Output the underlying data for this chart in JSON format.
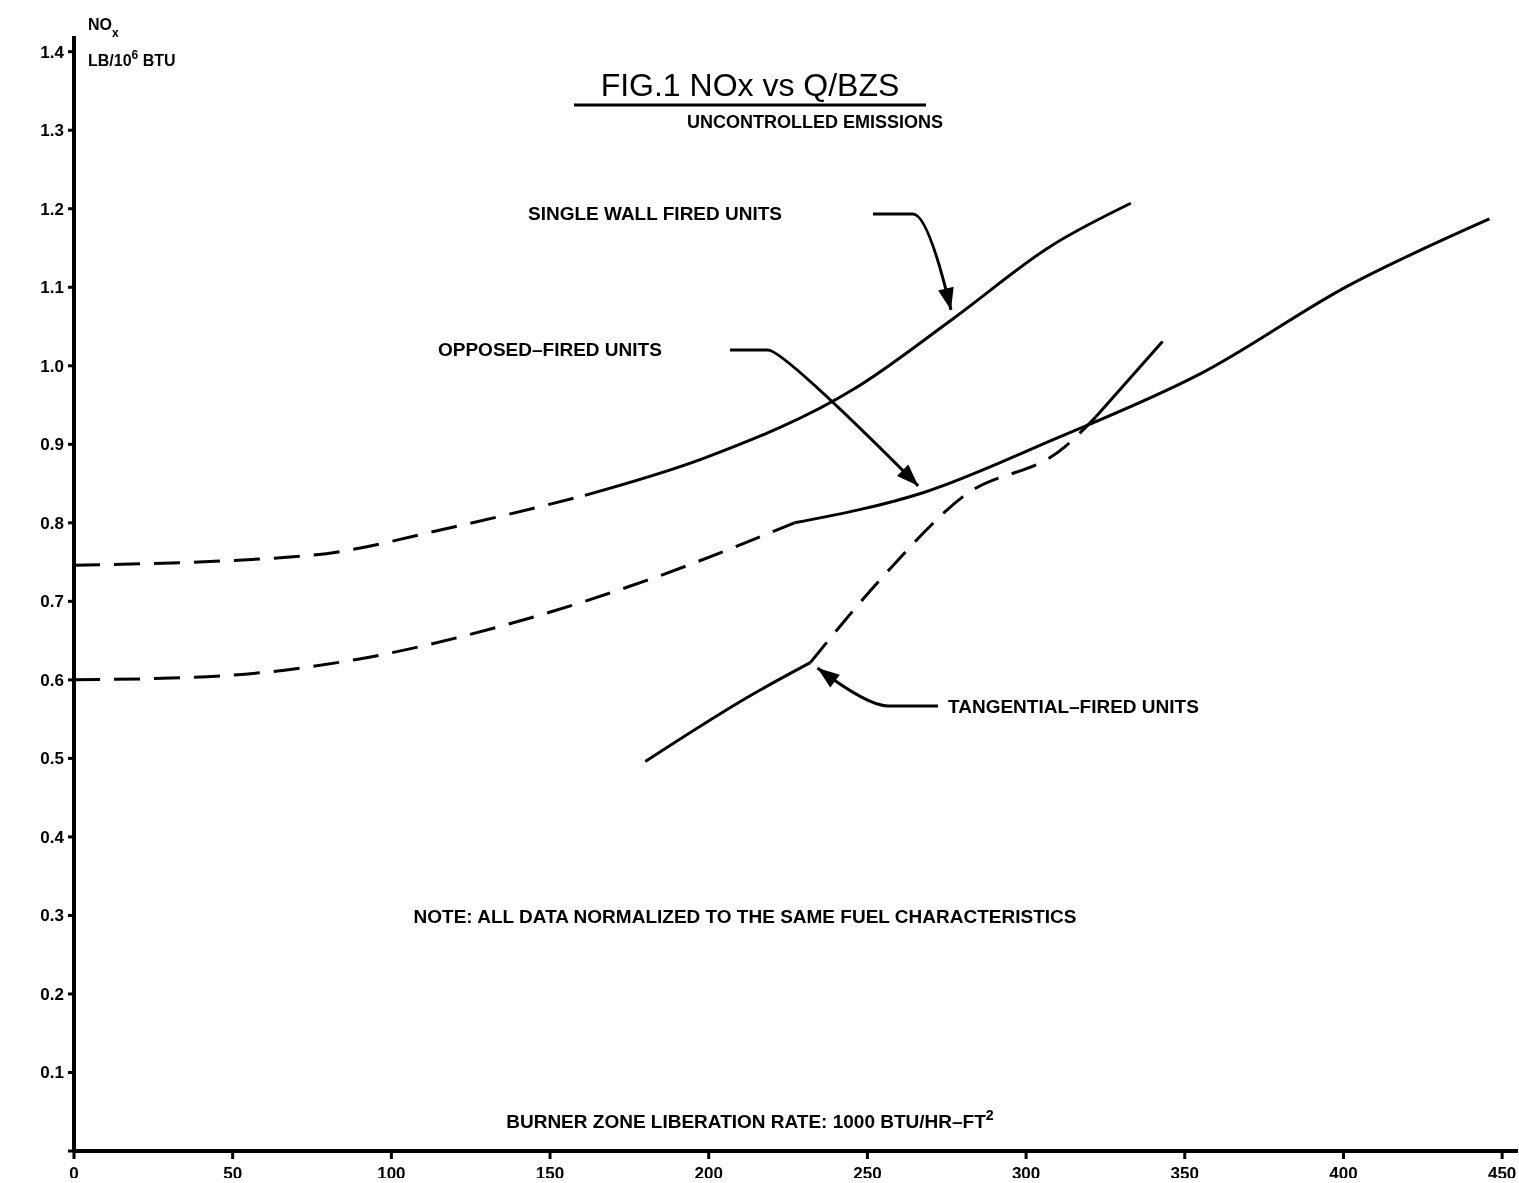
{
  "chart_data": {
    "type": "line",
    "title": "FIG.1  NOx vs Q/BZS",
    "subtitle": "UNCONTROLLED EMISSIONS",
    "xlabel": "BURNER ZONE LIBERATION RATE:  1000 BTU/HR–FT$^{2}$",
    "ylabel": "NO$_{x}$ LB/10$^{6}$ BTU",
    "xlim": [
      0,
      455
    ],
    "ylim": [
      0,
      1.42
    ],
    "xticks": [
      0,
      50,
      100,
      150,
      200,
      250,
      300,
      350,
      400,
      450
    ],
    "yticks": [
      {
        "value": 0,
        "label": null
      },
      0.1,
      0.2,
      0.3,
      0.4,
      0.5,
      0.6,
      0.7,
      0.8,
      0.9,
      {
        "value": 1,
        "label": "1.0"
      },
      1.1,
      1.2,
      1.3,
      1.4
    ],
    "grid": false,
    "marker": "none",
    "series": [
      {
        "color": "#000000",
        "line_style": "dashed",
        "x": [
          0,
          73,
          120,
          161
        ],
        "values": [
          0.746,
          0.758,
          0.795,
          0.835
        ]
      },
      {
        "color": "#000000",
        "line_style": "solid",
        "x": [
          161,
          199,
          246,
          277,
          308,
          333
        ],
        "values": [
          0.835,
          0.883,
          0.971,
          1.06,
          1.153,
          1.207
        ]
      },
      {
        "color": "#000000",
        "line_style": "dashed",
        "x": [
          0,
          42,
          89,
          136,
          180,
          227
        ],
        "values": [
          0.6,
          0.604,
          0.626,
          0.67,
          0.726,
          0.8
        ]
      },
      {
        "color": "#000000",
        "line_style": "solid",
        "x": [
          227,
          268,
          308,
          355,
          402,
          446
        ],
        "values": [
          0.8,
          0.839,
          0.905,
          0.99,
          1.103,
          1.187
        ]
      },
      {
        "color": "#000000",
        "line_style": "solid",
        "x": [
          180,
          214,
          232
        ],
        "values": [
          0.496,
          0.582,
          0.622
        ]
      },
      {
        "color": "#000000",
        "line_style": "dashed",
        "x": [
          232,
          255,
          280,
          312,
          322
        ],
        "values": [
          0.622,
          0.732,
          0.833,
          0.896,
          0.935
        ]
      },
      {
        "color": "#000000",
        "line_style": "solid",
        "x": [
          322,
          343
        ],
        "values": [
          0.935,
          1.031
        ]
      }
    ],
    "annotations": [
      "SINGLE WALL FIRED UNITS",
      "OPPOSED–FIRED UNITS",
      "TANGENTIAL–FIRED UNITS",
      "NOTE:  ALL DATA NORMALIZED TO THE SAME FUEL CHARACTERISTICS"
    ]
  }
}
